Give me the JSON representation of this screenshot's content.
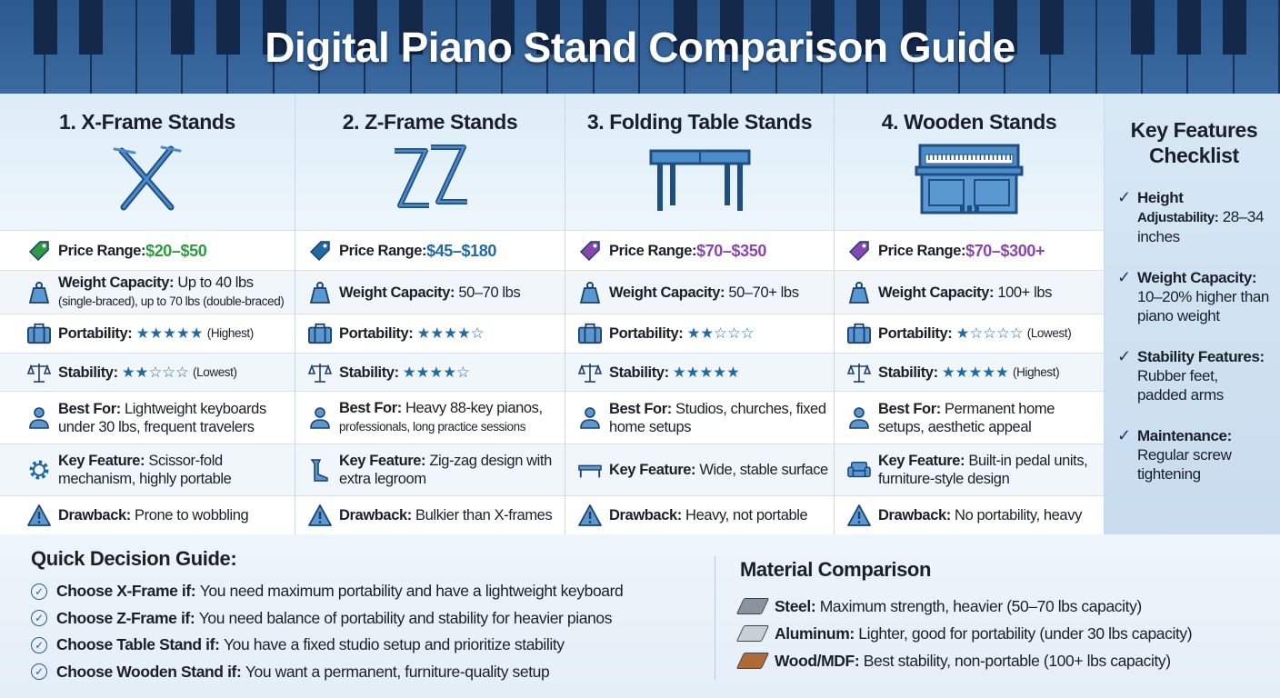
{
  "title": "Digital Piano Stand Comparison Guide",
  "colors": {
    "green": "#2e9b3f",
    "blue": "#1f6aa5",
    "purple": "#8a46b0",
    "navy": "#1d3f6e"
  },
  "columns": [
    {
      "title": "1. X-Frame Stands",
      "icon": "x-frame-stand-icon",
      "price_label": "Price Range:",
      "price": "$20–$50",
      "price_color": "#2e9b3f",
      "weight_label": "Weight Capacity:",
      "weight": "Up to 40 lbs",
      "weight_extra": "(single-braced), up to 70 lbs (double-braced)",
      "portability_label": "Portability:",
      "portability_stars": 5,
      "portability_note": "(Highest)",
      "stability_label": "Stability:",
      "stability_stars": 2,
      "stability_note": "(Lowest)",
      "best_label": "Best For:",
      "best": "Lightweight keyboards under 30 lbs, frequent travelers",
      "feature_label": "Key Feature:",
      "feature": "Scissor-fold mechanism, highly portable",
      "feature_icon": "gear-icon",
      "drawback_label": "Drawback:",
      "drawback": "Prone to wobbling"
    },
    {
      "title": "2. Z-Frame Stands",
      "icon": "z-frame-stand-icon",
      "price_label": "Price Range:",
      "price": "$45–$180",
      "price_color": "#1f6aa5",
      "weight_label": "Weight Capacity:",
      "weight": "50–70 lbs",
      "portability_label": "Portability:",
      "portability_stars": 4,
      "stability_label": "Stability:",
      "stability_stars": 4,
      "best_label": "Best For:",
      "best": "Heavy 88-key pianos,",
      "best_extra": "professionals, long practice sessions",
      "feature_label": "Key Feature:",
      "feature": "Zig-zag design with extra legroom",
      "feature_icon": "leg-icon",
      "drawback_label": "Drawback:",
      "drawback": "Bulkier than X-frames"
    },
    {
      "title": "3. Folding Table Stands",
      "icon": "table-stand-icon",
      "price_label": "Price Range:",
      "price": "$70–$350",
      "price_color": "#8a46b0",
      "weight_label": "Weight Capacity:",
      "weight": "50–70+ lbs",
      "portability_label": "Portability:",
      "portability_stars": 2,
      "stability_label": "Stability:",
      "stability_stars": 5,
      "best_label": "Best For:",
      "best": "Studios, churches, fixed home setups",
      "feature_label": "Key Feature:",
      "feature": "Wide, stable surface",
      "feature_icon": "table-icon",
      "drawback_label": "Drawback:",
      "drawback": "Heavy, not portable"
    },
    {
      "title": "4. Wooden Stands",
      "icon": "wooden-piano-icon",
      "price_label": "Price Range:",
      "price": "$70–$300+",
      "price_color": "#8a46b0",
      "weight_label": "Weight Capacity:",
      "weight": "100+ lbs",
      "portability_label": "Portability:",
      "portability_stars": 1,
      "portability_note": "(Lowest)",
      "stability_label": "Stability:",
      "stability_stars": 5,
      "stability_note": "(Highest)",
      "best_label": "Best For:",
      "best": "Permanent home setups, aesthetic appeal",
      "feature_label": "Key Feature:",
      "feature": "Built-in pedal units, furniture-style design",
      "feature_icon": "sofa-icon",
      "drawback_label": "Drawback:",
      "drawback": "No portability, heavy"
    }
  ],
  "checklist": {
    "title": "Key Features Checklist",
    "items": [
      {
        "label": "Height",
        "label2": "Adjustability:",
        "text": "28–34 inches"
      },
      {
        "label": "Weight Capacity:",
        "text": "10–20% higher than piano weight"
      },
      {
        "label": "Stability Features:",
        "text": "Rubber feet, padded arms"
      },
      {
        "label": "Maintenance:",
        "text": "Regular screw tightening"
      }
    ]
  },
  "quick_guide": {
    "title": "Quick Decision Guide:",
    "items": [
      {
        "label": "Choose X-Frame if:",
        "text": "You need maximum portability and have a lightweight keyboard"
      },
      {
        "label": "Choose Z-Frame if:",
        "text": "You need balance of portability and stability for heavier pianos"
      },
      {
        "label": "Choose Table Stand if:",
        "text": "You have a fixed studio setup and prioritize stability"
      },
      {
        "label": "Choose Wooden Stand if:",
        "text": "You want a permanent, furniture-quality setup"
      }
    ]
  },
  "materials": {
    "title": "Material Comparison",
    "items": [
      {
        "label": "Steel:",
        "text": "Maximum strength, heavier (50–70 lbs capacity)",
        "color": "#8a949e"
      },
      {
        "label": "Aluminum:",
        "text": "Lighter, good for portability (under 30 lbs capacity)",
        "color": "#c9cfd5"
      },
      {
        "label": "Wood/MDF:",
        "text": "Best stability, non-portable (100+ lbs capacity)",
        "color": "#b06a35"
      }
    ]
  }
}
